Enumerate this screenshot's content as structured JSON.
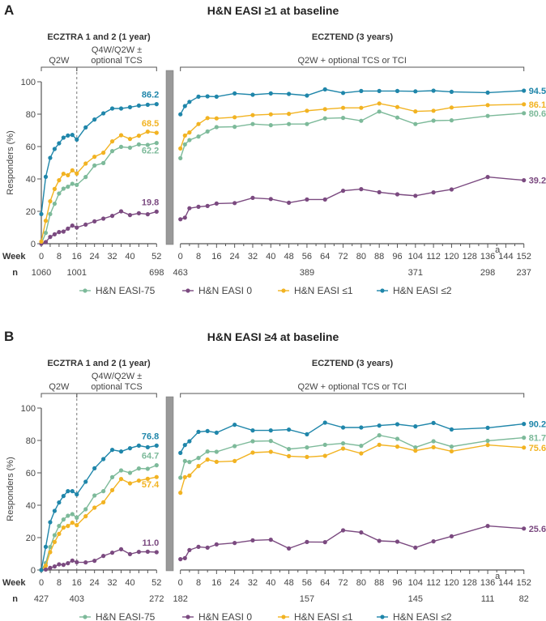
{
  "colors": {
    "EASI-75": "#7dba9a",
    "EASI 0": "#7b4a80",
    "EASI<=1": "#f2b322",
    "EASI<=2": "#1f86aa",
    "axis": "#555555",
    "gap_bar": "#999999"
  },
  "axis_labels": {
    "week": "Week",
    "n": "n"
  },
  "chart_data": [
    {
      "panel": "A",
      "type": "line",
      "title": "H&N EASI ≥1 at baseline",
      "ylabel": "Responders (%)",
      "ylim": [
        0,
        100
      ],
      "yticks": [
        0,
        20,
        40,
        60,
        80,
        100
      ],
      "legend": [
        "H&N EASI-75",
        "H&N EASI 0",
        "H&N EASI ≤1",
        "H&N EASI ≤2"
      ],
      "legend_position": "bottom",
      "left": {
        "header": "ECZTRA 1 and 2 (1 year)",
        "phases": [
          {
            "label": [
              "Q2W"
            ],
            "from": 0,
            "to": 16
          },
          {
            "label": [
              "Q4W/Q2W ±",
              "optional TCS"
            ],
            "from": 16,
            "to": 52
          }
        ],
        "xlim": [
          0,
          52
        ],
        "xtick_labels": [
          "0",
          "8",
          "16",
          "24",
          "32",
          "40",
          "52"
        ],
        "n": [
          {
            "week": 0,
            "n": "1060"
          },
          {
            "week": 16,
            "n": "1001"
          },
          {
            "week": 52,
            "n": "698"
          }
        ],
        "weeks": [
          0,
          2,
          4,
          6,
          8,
          10,
          12,
          14,
          16,
          20,
          24,
          28,
          32,
          36,
          40,
          44,
          48,
          52
        ],
        "series": [
          {
            "name": "H&N EASI-75",
            "values": [
              0,
              6.7,
              18.3,
              24.7,
              31,
              34,
              35.2,
              37,
              36.3,
              41.2,
              48.3,
              49.8,
              57.2,
              59.8,
              59.3,
              61.3,
              61,
              62.2
            ],
            "end_label": "62.2"
          },
          {
            "name": "H&N EASI 0",
            "values": [
              0,
              1,
              4.2,
              5.8,
              7.2,
              7.5,
              9.3,
              11.2,
              10,
              11.8,
              13.8,
              15.5,
              17.2,
              20,
              17.7,
              18.8,
              18.2,
              19.8
            ],
            "end_label": "19.8"
          },
          {
            "name": "H&N EASI ≤1",
            "values": [
              1.3,
              14.2,
              26.2,
              33.8,
              39.2,
              43.2,
              42.3,
              45.3,
              43.3,
              49.5,
              53.7,
              56.2,
              63.2,
              67,
              64.7,
              66.7,
              69.2,
              68.5
            ],
            "end_label": "68.5"
          },
          {
            "name": "H&N EASI ≤2",
            "values": [
              18.3,
              41.3,
              53,
              58.5,
              62,
              65.5,
              66.8,
              67.2,
              64.3,
              71.8,
              76.7,
              80.5,
              83.5,
              83.5,
              84.3,
              85.3,
              85.8,
              86.2
            ],
            "end_label": "86.2"
          }
        ]
      },
      "right": {
        "header": "ECZTEND (3 years)",
        "phases": [
          {
            "label": [
              "Q2W + optional TCS or TCI"
            ],
            "from": 0,
            "to": 152
          }
        ],
        "xlim": [
          0,
          152
        ],
        "xtick_labels": [
          "0",
          "8",
          "16",
          "24",
          "32",
          "40",
          "48",
          "56",
          "64",
          "72",
          "80",
          "88",
          "96",
          "104",
          "112",
          "120",
          "128",
          "136",
          "144",
          "152"
        ],
        "footnote_tick": {
          "week": "136",
          "mark": "a"
        },
        "n": [
          {
            "week": 0,
            "n": "463"
          },
          {
            "week": 56,
            "n": "389"
          },
          {
            "week": 104,
            "n": "371"
          },
          {
            "week": 136,
            "n": "298"
          },
          {
            "week": 152,
            "n": "237"
          }
        ],
        "weeks": [
          0,
          2,
          4,
          8,
          12,
          16,
          24,
          32,
          40,
          48,
          56,
          64,
          72,
          80,
          88,
          96,
          104,
          112,
          120,
          136,
          152
        ],
        "series": [
          {
            "name": "H&N EASI-75",
            "values": [
              52.8,
              61.3,
              64,
              66.2,
              69.3,
              72,
              72.2,
              73.9,
              73.2,
              73.9,
              73.9,
              77.4,
              77.7,
              75.9,
              81.6,
              77.9,
              73.9,
              76,
              76.2,
              78.9,
              80.6
            ],
            "end_label": "80.6"
          },
          {
            "name": "H&N EASI 0",
            "values": [
              15.1,
              16.1,
              21.9,
              22.8,
              23.3,
              24.8,
              25.1,
              28.3,
              27.6,
              25.3,
              27.3,
              27.3,
              32.7,
              33.7,
              31.8,
              30.5,
              29.6,
              31.7,
              33.5,
              41.2,
              39.2
            ],
            "end_label": "39.2"
          },
          {
            "name": "H&N EASI ≤1",
            "values": [
              58.8,
              66.8,
              68.7,
              73.9,
              77.6,
              77.4,
              78.1,
              79.4,
              79.9,
              80.2,
              82.1,
              83.1,
              83.9,
              83.9,
              86.6,
              84.4,
              81.7,
              82.1,
              84.1,
              85.6,
              86.1
            ],
            "end_label": "86.1"
          },
          {
            "name": "H&N EASI ≤2",
            "values": [
              79.9,
              85,
              87.6,
              90.8,
              91,
              90.8,
              92.8,
              92,
              92.8,
              92.5,
              91.5,
              95.3,
              93.1,
              94.3,
              94.3,
              94.3,
              94.1,
              94.5,
              93.8,
              93.3,
              94.5
            ],
            "end_label": "94.5"
          }
        ]
      }
    },
    {
      "panel": "B",
      "type": "line",
      "title": "H&N EASI ≥4 at baseline",
      "ylabel": "Responders (%)",
      "ylim": [
        0,
        100
      ],
      "yticks": [
        0,
        20,
        40,
        60,
        80,
        100
      ],
      "legend": [
        "H&N EASI-75",
        "H&N EASI 0",
        "H&N EASI ≤1",
        "H&N EASI ≤2"
      ],
      "legend_position": "bottom",
      "left": {
        "header": "ECZTRA 1 and 2 (1 year)",
        "phases": [
          {
            "label": [
              "Q2W"
            ],
            "from": 0,
            "to": 16
          },
          {
            "label": [
              "Q4W/Q2W ±",
              "optional TCS"
            ],
            "from": 16,
            "to": 52
          }
        ],
        "xlim": [
          0,
          52
        ],
        "xtick_labels": [
          "0",
          "8",
          "16",
          "24",
          "32",
          "40",
          "52"
        ],
        "n": [
          {
            "week": 0,
            "n": "427"
          },
          {
            "week": 16,
            "n": "403"
          },
          {
            "week": 52,
            "n": "272"
          }
        ],
        "weeks": [
          0,
          2,
          4,
          6,
          8,
          10,
          12,
          14,
          16,
          20,
          24,
          28,
          32,
          36,
          40,
          44,
          48,
          52
        ],
        "series": [
          {
            "name": "H&N EASI-75",
            "values": [
              0,
              4.3,
              14.2,
              21.5,
              27.2,
              31.2,
              33.5,
              34.5,
              32.3,
              37.5,
              46,
              48.7,
              57.3,
              61.5,
              60,
              62.7,
              62.5,
              64.7
            ],
            "end_label": "64.7"
          },
          {
            "name": "H&N EASI 0",
            "values": [
              0,
              0.3,
              1.3,
              2.2,
              3.5,
              3.2,
              4.2,
              5.8,
              4.8,
              4.7,
              5.7,
              8.7,
              10.7,
              12.8,
              9.8,
              11.2,
              11.3,
              11.0
            ],
            "end_label": "11.0"
          },
          {
            "name": "H&N EASI ≤1",
            "values": [
              0,
              2.7,
              11,
              17.3,
              22.3,
              26.2,
              27.2,
              29.2,
              27.7,
              33.2,
              38.5,
              41.8,
              49.3,
              56.2,
              53.5,
              55.2,
              56.3,
              57.4
            ],
            "end_label": "57.4"
          },
          {
            "name": "H&N EASI ≤2",
            "values": [
              0,
              14.3,
              29.5,
              36.5,
              41.7,
              45.7,
              48.7,
              48.7,
              46.7,
              54.5,
              62.8,
              68.5,
              74.2,
              73.2,
              75.2,
              76.8,
              75.8,
              76.8
            ],
            "end_label": "76.8"
          }
        ]
      },
      "right": {
        "header": "ECZTEND (3 years)",
        "phases": [
          {
            "label": [
              "Q2W + optional TCS or TCI"
            ],
            "from": 0,
            "to": 152
          }
        ],
        "xlim": [
          0,
          152
        ],
        "xtick_labels": [
          "0",
          "8",
          "16",
          "24",
          "32",
          "40",
          "48",
          "56",
          "64",
          "72",
          "80",
          "88",
          "96",
          "104",
          "112",
          "120",
          "128",
          "136",
          "144",
          "152"
        ],
        "footnote_tick": {
          "week": "136",
          "mark": "a"
        },
        "n": [
          {
            "week": 0,
            "n": "182"
          },
          {
            "week": 56,
            "n": "157"
          },
          {
            "week": 104,
            "n": "145"
          },
          {
            "week": 136,
            "n": "111"
          },
          {
            "week": 152,
            "n": "82"
          }
        ],
        "weeks": [
          0,
          2,
          4,
          8,
          12,
          16,
          24,
          32,
          40,
          48,
          56,
          64,
          72,
          80,
          88,
          96,
          104,
          112,
          120,
          136,
          152
        ],
        "series": [
          {
            "name": "H&N EASI-75",
            "values": [
              57,
              67.3,
              66.7,
              69.2,
              73.2,
              73,
              76.5,
              79.5,
              79.7,
              74.7,
              75.7,
              77.3,
              78.2,
              76.7,
              83.2,
              81,
              75.7,
              79.5,
              76.2,
              79.8,
              81.7
            ],
            "end_label": "81.7"
          },
          {
            "name": "H&N EASI 0",
            "values": [
              6.7,
              7.3,
              12.3,
              14.3,
              13.8,
              15.8,
              16.7,
              18.3,
              18.7,
              13.3,
              17.3,
              17.2,
              24.5,
              23.2,
              18,
              17.5,
              13.8,
              17.7,
              20.8,
              27.2,
              25.6
            ],
            "end_label": "25.6"
          },
          {
            "name": "H&N EASI ≤1",
            "values": [
              47.7,
              57.3,
              58.3,
              64.2,
              68.2,
              66.8,
              67.3,
              72.5,
              73,
              70.3,
              69.8,
              70.5,
              75,
              72,
              77.3,
              76.2,
              73.7,
              75.8,
              73.3,
              77.2,
              75.6
            ],
            "end_label": "75.6"
          },
          {
            "name": "H&N EASI ≤2",
            "values": [
              72.3,
              77.2,
              79.5,
              85.3,
              85.8,
              84.8,
              89.7,
              86.2,
              86.2,
              86.7,
              83.8,
              91,
              88,
              88,
              89.2,
              90,
              88.7,
              90.8,
              86.8,
              87.8,
              90.2
            ],
            "end_label": "90.2"
          }
        ]
      }
    }
  ]
}
